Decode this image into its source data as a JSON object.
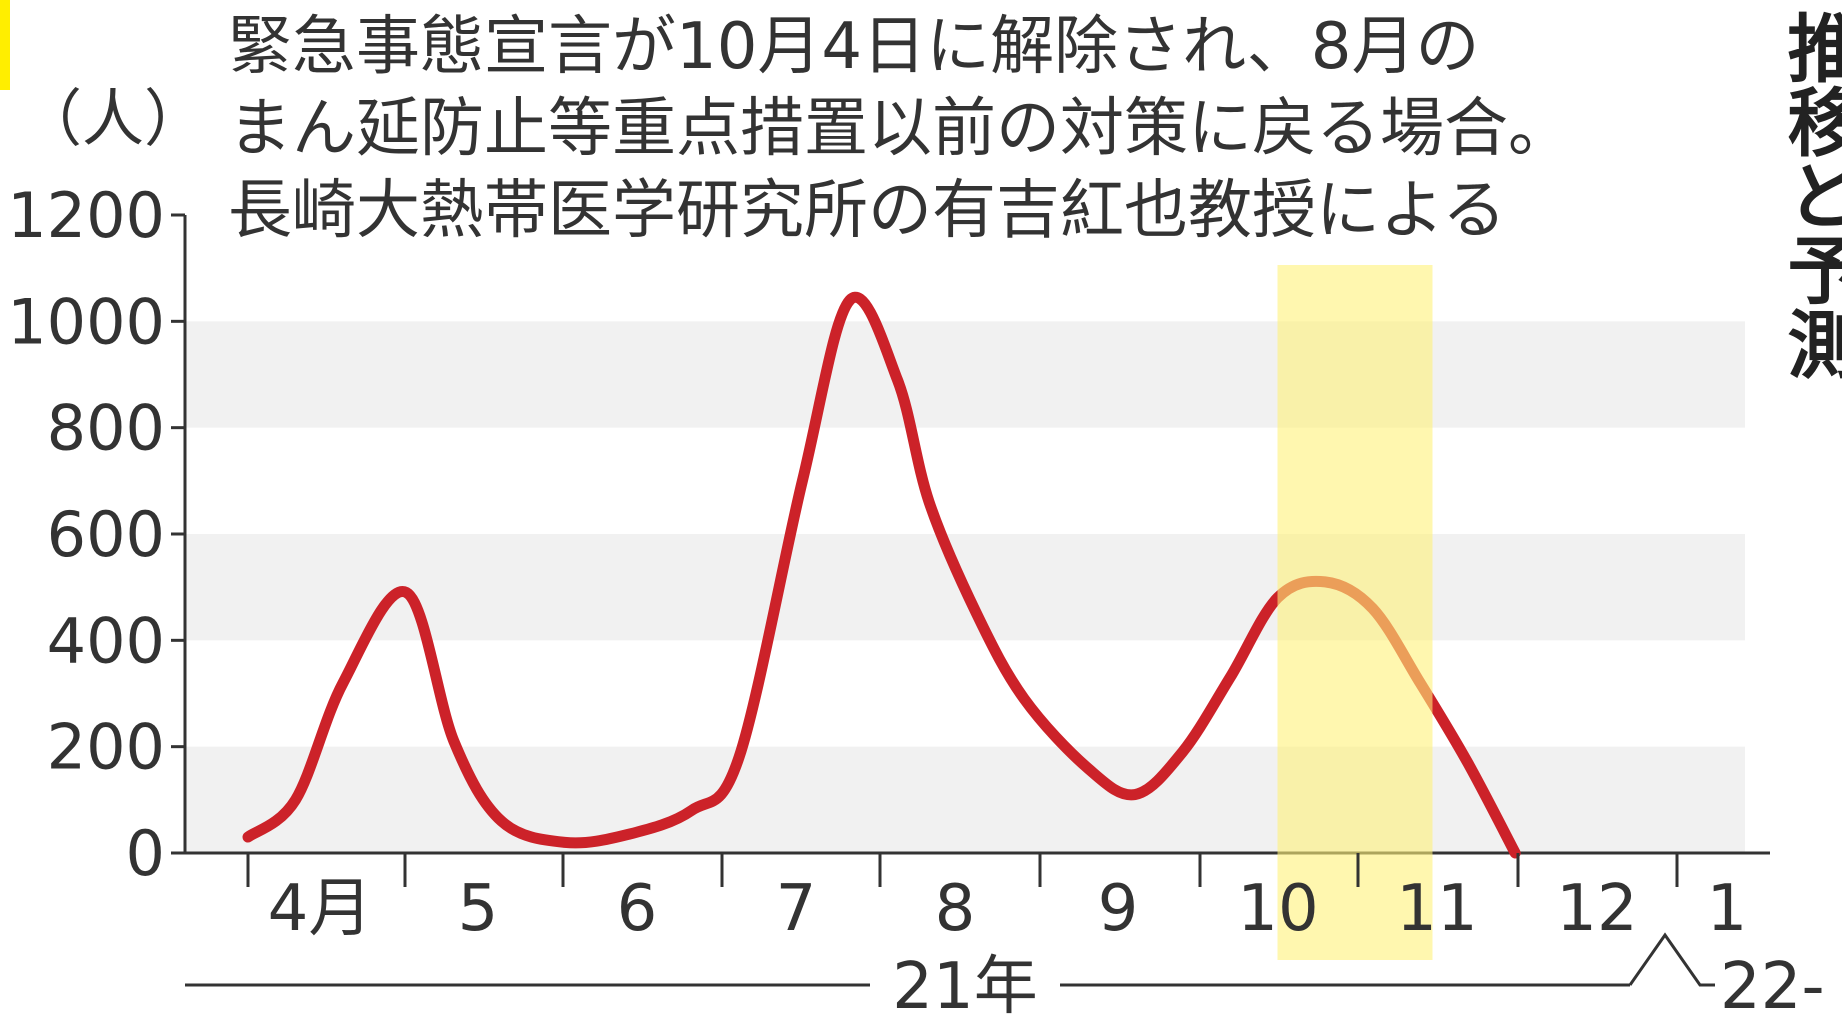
{
  "chart_data": {
    "type": "line",
    "unit_label": "（人）",
    "annotation_lines": [
      "緊急事態宣言が10月4日に解除され、8月の",
      "まん延防止等重点措置以前の対策に戻る場合。",
      "長崎大熱帯医学研究所の有吉紅也教授による"
    ],
    "side_title": "推移と予測",
    "y_ticks": [
      "0",
      "200",
      "400",
      "600",
      "800",
      "1000",
      "1200"
    ],
    "ylim": [
      0,
      1200
    ],
    "x_ticks": [
      "4月",
      "5",
      "6",
      "7",
      "8",
      "9",
      "10",
      "11",
      "12",
      "1"
    ],
    "year_labels": [
      "21年",
      "22"
    ],
    "highlight_month": "11",
    "colors": {
      "line": "#cc2229",
      "highlight": "#fff27a",
      "band": "#f1f1f1",
      "axis": "#333333"
    },
    "series": [
      {
        "x": [
          4.0,
          4.3,
          4.6,
          5.0,
          5.3,
          5.6,
          6.0,
          6.4,
          6.8,
          7.1,
          7.5,
          7.8,
          8.1,
          8.3,
          8.6,
          8.9,
          9.3,
          9.6,
          9.9,
          10.2,
          10.5,
          10.8,
          11.1,
          11.4,
          11.7,
          12.0,
          12.3
        ],
        "values": [
          30,
          100,
          320,
          490,
          210,
          60,
          20,
          35,
          80,
          180,
          700,
          1040,
          890,
          660,
          450,
          290,
          160,
          110,
          190,
          330,
          480,
          510,
          460,
          320,
          170,
          0,
          0
        ]
      }
    ]
  }
}
